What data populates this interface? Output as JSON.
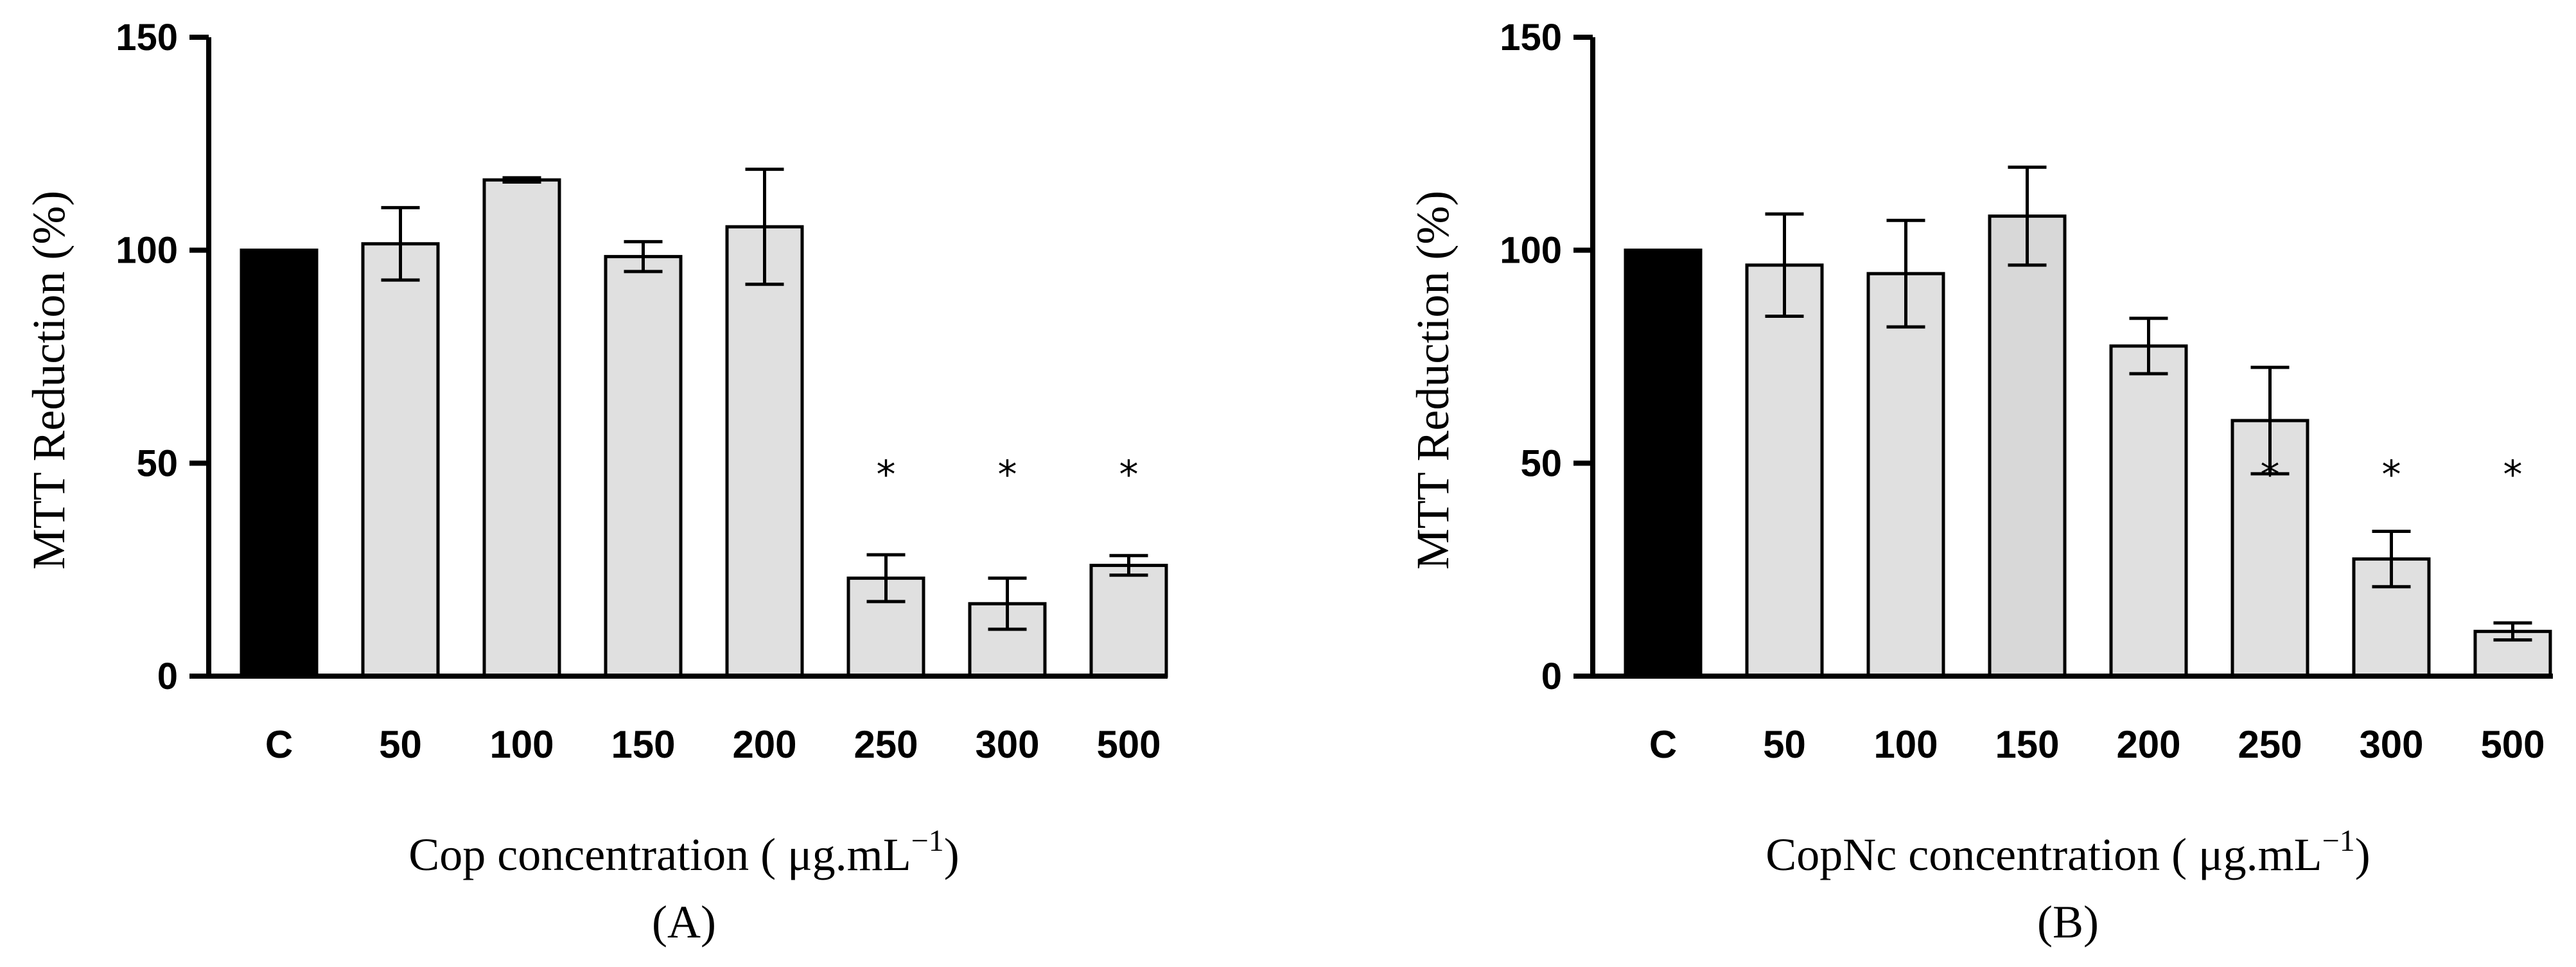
{
  "chart_data": [
    {
      "type": "bar",
      "panel": "(A)",
      "ylabel": "MTT Reduction (%)",
      "xlabel": "Cop concentration ( μg.mL",
      "xlabel_sup": "−1",
      "xlabel_close": ")",
      "ylim": [
        0,
        150
      ],
      "yticks": [
        "0",
        "50",
        "100",
        "150"
      ],
      "categories": [
        "C",
        "50",
        "100",
        "150",
        "200",
        "250",
        "300",
        "500"
      ],
      "values": [
        100,
        101.5,
        116.5,
        98.5,
        105.5,
        23,
        17,
        26
      ],
      "errors": [
        0,
        8.5,
        0.5,
        3.5,
        13.5,
        5.5,
        6,
        2.3
      ],
      "significance": [
        "",
        "",
        "",
        "",
        "",
        "*",
        "*",
        "*"
      ],
      "colors": [
        "#000000",
        "#e0e0e0",
        "#e0e0e0",
        "#e0e0e0",
        "#e0e0e0",
        "#e0e0e0",
        "#e0e0e0",
        "#e0e0e0"
      ]
    },
    {
      "type": "bar",
      "panel": "(B)",
      "ylabel": "MTT Reduction (%)",
      "xlabel": "CopNc concentration ( μg.mL",
      "xlabel_sup": "−1",
      "xlabel_close": ")",
      "ylim": [
        0,
        150
      ],
      "yticks": [
        "0",
        "50",
        "100",
        "150"
      ],
      "categories": [
        "C",
        "50",
        "100",
        "150",
        "200",
        "250",
        "300",
        "500"
      ],
      "values": [
        100,
        96.5,
        94.5,
        108,
        77.5,
        60,
        27.5,
        10.5
      ],
      "errors": [
        0,
        12,
        12.5,
        11.5,
        6.5,
        12.5,
        6.5,
        2
      ],
      "significance": [
        "",
        "",
        "",
        "",
        "",
        "*",
        "*",
        "*"
      ],
      "colors": [
        "#000000",
        "#e0e0e0",
        "#e0e0e0",
        "#d8d8d8",
        "#e0e0e0",
        "#e0e0e0",
        "#e0e0e0",
        "#e0e0e0"
      ]
    }
  ]
}
